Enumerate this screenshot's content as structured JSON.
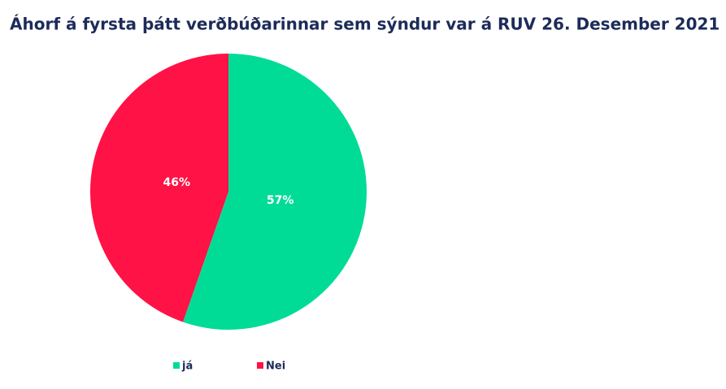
{
  "chart_data": {
    "type": "pie",
    "title": "Áhorf á fyrsta þátt verðbúðarinnar sem sýndur var á RUV 26. Desember 2021",
    "categories": [
      "já",
      "Nei"
    ],
    "values": [
      57,
      46
    ],
    "value_labels": [
      "57%",
      "46%"
    ],
    "colors": [
      "#00dc96",
      "#ff1245"
    ]
  }
}
